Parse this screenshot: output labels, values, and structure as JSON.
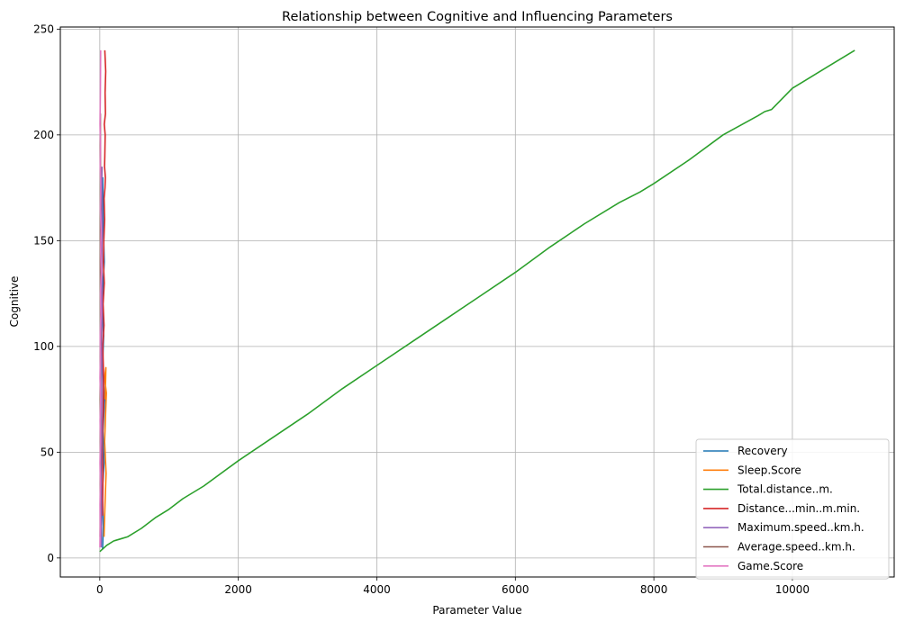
{
  "chart_data": {
    "type": "line",
    "title": "Relationship between Cognitive and Influencing Parameters",
    "xlabel": "Parameter Value",
    "ylabel": "Cognitive",
    "xlim": [
      -570,
      11470
    ],
    "ylim": [
      -9,
      251
    ],
    "xticks": [
      0,
      2000,
      4000,
      6000,
      8000,
      10000
    ],
    "yticks": [
      0,
      50,
      100,
      150,
      200,
      250
    ],
    "grid": true,
    "legend_position": "lower right",
    "series": [
      {
        "name": "Recovery",
        "color": "#1f77b4",
        "x": [
          40,
          52,
          35,
          60,
          45,
          70,
          38,
          55,
          30,
          65,
          48,
          42
        ],
        "y": [
          4,
          15,
          30,
          45,
          60,
          75,
          90,
          105,
          120,
          140,
          160,
          180
        ]
      },
      {
        "name": "Sleep.Score",
        "color": "#ff7f0e",
        "x": [
          60,
          75,
          90,
          70,
          85,
          95,
          80,
          72,
          88,
          78
        ],
        "y": [
          10,
          25,
          40,
          55,
          70,
          78,
          82,
          86,
          90,
          75
        ]
      },
      {
        "name": "Total.distance..m.",
        "color": "#2ca02c",
        "x": [
          0,
          100,
          200,
          300,
          400,
          600,
          800,
          1000,
          1200,
          1500,
          2000,
          2500,
          3000,
          3500,
          4000,
          4500,
          5000,
          5500,
          6000,
          6500,
          7000,
          7500,
          7800,
          8000,
          8500,
          9000,
          9500,
          9600,
          9700,
          10000,
          10500,
          10900
        ],
        "y": [
          3,
          6,
          8,
          9,
          10,
          14,
          19,
          23,
          28,
          34,
          46,
          57,
          68,
          80,
          91,
          102,
          113,
          124,
          135,
          147,
          158,
          168,
          173,
          177,
          188,
          200,
          209,
          211,
          212,
          222,
          232,
          240
        ]
      },
      {
        "name": "Distance...min..m.min.",
        "color": "#d62728",
        "x": [
          40,
          45,
          35,
          50,
          55,
          42,
          60,
          48,
          65,
          52,
          58,
          70,
          62,
          75,
          80,
          68,
          72,
          78,
          65,
          82,
          76,
          85,
          72
        ],
        "y": [
          20,
          40,
          55,
          70,
          85,
          100,
          110,
          120,
          130,
          140,
          150,
          160,
          170,
          175,
          180,
          185,
          190,
          200,
          205,
          210,
          220,
          230,
          240
        ]
      },
      {
        "name": "Maximum.speed..km.h.",
        "color": "#9467bd",
        "x": [
          20,
          25,
          22,
          28,
          30,
          26,
          32,
          28,
          34,
          30,
          27,
          32
        ],
        "y": [
          5,
          20,
          40,
          60,
          80,
          100,
          120,
          140,
          155,
          165,
          175,
          185
        ]
      },
      {
        "name": "Average.speed..km.h.",
        "color": "#8c564b",
        "x": [
          5,
          8,
          6,
          10,
          7,
          12,
          6,
          9,
          8,
          10,
          7
        ],
        "y": [
          10,
          50,
          80,
          110,
          140,
          170,
          190,
          210,
          200,
          180,
          150
        ]
      },
      {
        "name": "Game.Score",
        "color": "#e377c2",
        "x": [
          2,
          6,
          3,
          8,
          4,
          10,
          5,
          12,
          3,
          9,
          6,
          15,
          10,
          20,
          12,
          18,
          8,
          14,
          6,
          10,
          4,
          8,
          12
        ],
        "y": [
          5,
          15,
          25,
          35,
          45,
          55,
          65,
          75,
          85,
          95,
          105,
          115,
          125,
          135,
          145,
          155,
          165,
          175,
          185,
          195,
          205,
          220,
          240
        ]
      }
    ]
  }
}
